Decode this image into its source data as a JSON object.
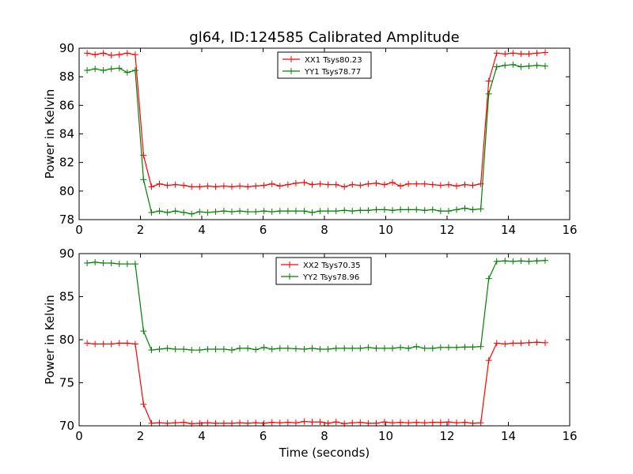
{
  "figure": {
    "title": "gl64, ID:124585 Calibrated Amplitude",
    "xlabel": "Time (seconds)"
  },
  "chart_data": [
    {
      "type": "line",
      "title": "gl64, ID:124585 Calibrated Amplitude",
      "xlabel": "",
      "ylabel": "Power in Kelvin",
      "xlim": [
        0,
        16
      ],
      "ylim": [
        78,
        90
      ],
      "xticks": [
        "0",
        "2",
        "4",
        "6",
        "8",
        "10",
        "12",
        "14",
        "16"
      ],
      "yticks": [
        "78",
        "80",
        "82",
        "84",
        "86",
        "88",
        "90"
      ],
      "legend_position": "top-center",
      "marker": "+",
      "grid": false,
      "x": [
        0.26,
        0.52,
        0.79,
        1.05,
        1.31,
        1.57,
        1.83,
        2.1,
        2.36,
        2.62,
        2.88,
        3.14,
        3.41,
        3.67,
        3.93,
        4.19,
        4.45,
        4.72,
        4.98,
        5.24,
        5.5,
        5.76,
        6.03,
        6.29,
        6.55,
        6.81,
        7.07,
        7.34,
        7.6,
        7.86,
        8.12,
        8.38,
        8.65,
        8.91,
        9.17,
        9.43,
        9.69,
        9.96,
        10.22,
        10.48,
        10.74,
        11.0,
        11.27,
        11.53,
        11.79,
        12.05,
        12.31,
        12.58,
        12.84,
        13.1,
        13.36,
        13.62,
        13.89,
        14.15,
        14.41,
        14.67,
        14.93,
        15.2
      ],
      "series": [
        {
          "name": "XX1 Tsys80.23",
          "color": "#ff0000",
          "values": [
            89.65,
            89.55,
            89.65,
            89.5,
            89.55,
            89.65,
            89.55,
            82.5,
            80.3,
            80.5,
            80.4,
            80.45,
            80.4,
            80.3,
            80.3,
            80.35,
            80.3,
            80.35,
            80.3,
            80.35,
            80.3,
            80.35,
            80.4,
            80.5,
            80.35,
            80.45,
            80.55,
            80.6,
            80.45,
            80.5,
            80.45,
            80.45,
            80.3,
            80.45,
            80.4,
            80.5,
            80.55,
            80.45,
            80.6,
            80.35,
            80.5,
            80.5,
            80.5,
            80.45,
            80.4,
            80.45,
            80.35,
            80.45,
            80.4,
            80.5,
            87.7,
            89.65,
            89.6,
            89.65,
            89.6,
            89.6,
            89.65,
            89.7
          ]
        },
        {
          "name": "YY1 Tsys78.77",
          "color": "#008000",
          "values": [
            88.45,
            88.55,
            88.45,
            88.55,
            88.6,
            88.3,
            88.45,
            80.8,
            78.5,
            78.6,
            78.5,
            78.6,
            78.5,
            78.4,
            78.55,
            78.5,
            78.55,
            78.6,
            78.55,
            78.6,
            78.55,
            78.55,
            78.6,
            78.55,
            78.6,
            78.6,
            78.6,
            78.6,
            78.5,
            78.6,
            78.6,
            78.6,
            78.65,
            78.6,
            78.65,
            78.65,
            78.7,
            78.7,
            78.65,
            78.7,
            78.7,
            78.7,
            78.65,
            78.7,
            78.6,
            78.6,
            78.7,
            78.8,
            78.7,
            78.75,
            86.8,
            88.7,
            88.8,
            88.85,
            88.7,
            88.75,
            88.8,
            88.75
          ]
        }
      ]
    },
    {
      "type": "line",
      "title": "",
      "xlabel": "Time (seconds)",
      "ylabel": "Power in Kelvin",
      "xlim": [
        0,
        16
      ],
      "ylim": [
        70,
        90
      ],
      "xticks": [
        "0",
        "2",
        "4",
        "6",
        "8",
        "10",
        "12",
        "14",
        "16"
      ],
      "yticks": [
        "70",
        "75",
        "80",
        "85",
        "90"
      ],
      "legend_position": "top-center",
      "marker": "+",
      "grid": false,
      "x": [
        0.26,
        0.52,
        0.79,
        1.05,
        1.31,
        1.57,
        1.83,
        2.1,
        2.36,
        2.62,
        2.88,
        3.14,
        3.41,
        3.67,
        3.93,
        4.19,
        4.45,
        4.72,
        4.98,
        5.24,
        5.5,
        5.76,
        6.03,
        6.29,
        6.55,
        6.81,
        7.07,
        7.34,
        7.6,
        7.86,
        8.12,
        8.38,
        8.65,
        8.91,
        9.17,
        9.43,
        9.69,
        9.96,
        10.22,
        10.48,
        10.74,
        11.0,
        11.27,
        11.53,
        11.79,
        12.05,
        12.31,
        12.58,
        12.84,
        13.1,
        13.36,
        13.62,
        13.89,
        14.15,
        14.41,
        14.67,
        14.93,
        15.2
      ],
      "series": [
        {
          "name": "XX2 Tsys70.35",
          "color": "#ff0000",
          "values": [
            79.6,
            79.5,
            79.5,
            79.5,
            79.6,
            79.6,
            79.5,
            72.5,
            70.3,
            70.35,
            70.3,
            70.35,
            70.4,
            70.25,
            70.3,
            70.35,
            70.3,
            70.3,
            70.3,
            70.35,
            70.3,
            70.35,
            70.3,
            70.4,
            70.35,
            70.4,
            70.35,
            70.5,
            70.45,
            70.45,
            70.3,
            70.45,
            70.25,
            70.35,
            70.4,
            70.3,
            70.3,
            70.45,
            70.35,
            70.4,
            70.35,
            70.4,
            70.35,
            70.4,
            70.4,
            70.45,
            70.35,
            70.4,
            70.3,
            70.35,
            77.6,
            79.6,
            79.5,
            79.6,
            79.6,
            79.65,
            79.7,
            79.65
          ]
        },
        {
          "name": "YY2 Tsys78.96",
          "color": "#008000",
          "values": [
            88.9,
            89.0,
            88.9,
            88.9,
            88.8,
            88.8,
            88.8,
            81.0,
            78.8,
            78.9,
            79.0,
            78.9,
            78.9,
            78.8,
            78.8,
            78.9,
            78.9,
            78.9,
            78.8,
            79.0,
            79.0,
            78.85,
            79.1,
            78.9,
            79.0,
            79.0,
            78.95,
            78.9,
            79.0,
            78.9,
            78.9,
            79.0,
            79.0,
            79.0,
            79.0,
            79.1,
            79.0,
            79.0,
            79.0,
            79.1,
            79.0,
            79.2,
            79.0,
            79.0,
            79.1,
            79.1,
            79.1,
            79.15,
            79.15,
            79.2,
            87.1,
            89.1,
            89.15,
            89.1,
            89.15,
            89.1,
            89.15,
            89.2
          ]
        }
      ]
    }
  ]
}
